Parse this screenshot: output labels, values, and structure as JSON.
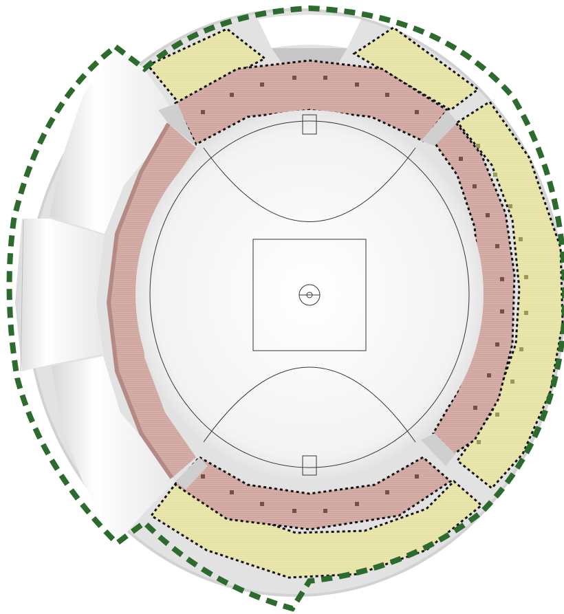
{
  "diagram": {
    "kind": "stadium-seating-plan",
    "colors": {
      "background": "#ffffff",
      "field": "#f2f2f2",
      "field_edge": "#dcdcdc",
      "lower_tier": "#cfa8a1",
      "lower_tier_edge": "#b58a84",
      "upper_tier": "#e8e6a8",
      "concourse_gap": "#c4c4c4",
      "outline_green": "#2d6a2d",
      "outline_black": "#111111",
      "field_lines": "#333333",
      "vomitory": "#7a4e47",
      "ghost_stand": "#ffffff"
    },
    "field_markings": [
      "centre-square",
      "centre-circle",
      "arc-north",
      "arc-south",
      "goal-square-north",
      "goal-square-south",
      "boundary-line"
    ],
    "stands": [
      {
        "id": "north-lower",
        "tier": "lower"
      },
      {
        "id": "east-lower",
        "tier": "lower"
      },
      {
        "id": "south-lower",
        "tier": "lower"
      },
      {
        "id": "west-lower",
        "tier": "lower"
      },
      {
        "id": "north-west-upper",
        "tier": "upper"
      },
      {
        "id": "north-east-upper",
        "tier": "upper"
      },
      {
        "id": "east-upper",
        "tier": "upper"
      },
      {
        "id": "south-upper",
        "tier": "upper"
      },
      {
        "id": "west-upper-ghost",
        "tier": "ghost"
      }
    ]
  }
}
